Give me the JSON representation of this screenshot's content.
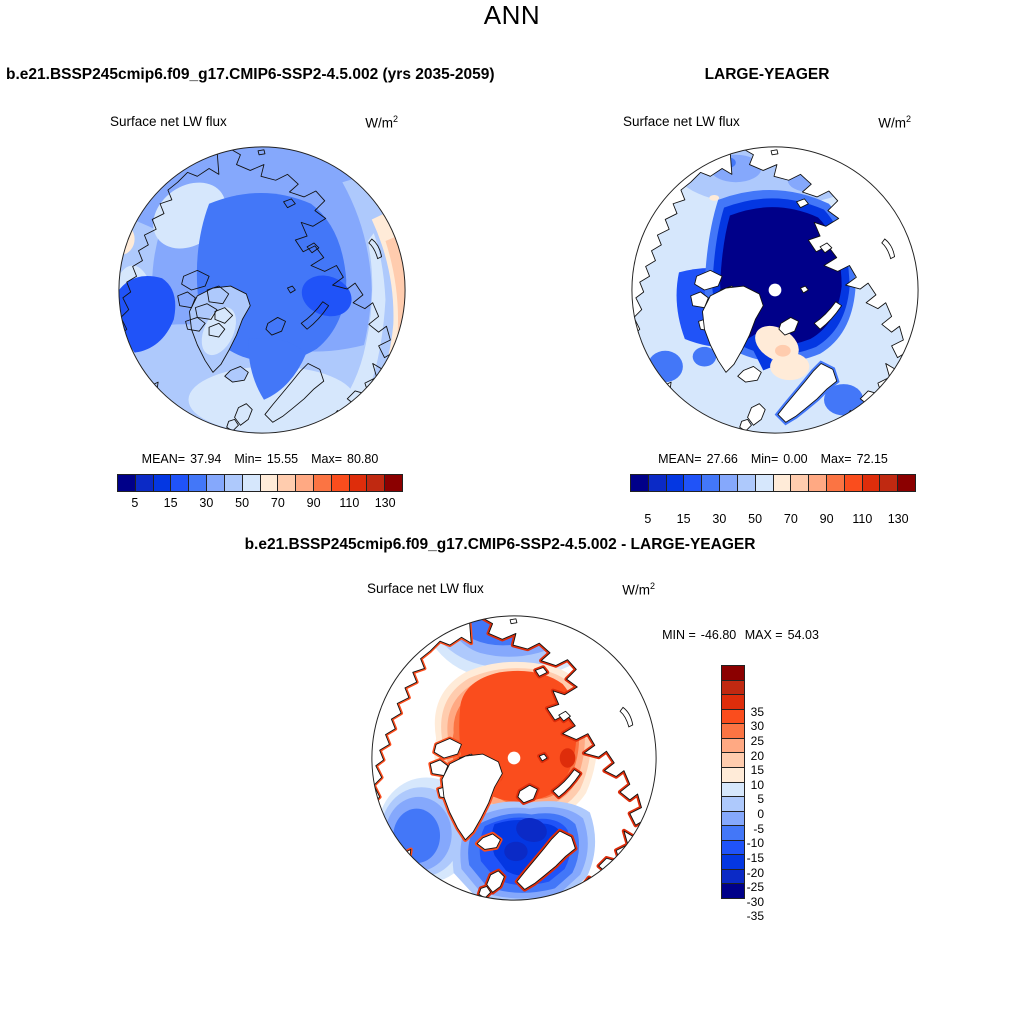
{
  "page_title": "ANN",
  "palette_blue_to_red": [
    "#000089",
    "#0B2AC6",
    "#0437E2",
    "#2053F8",
    "#4377F8",
    "#85A8FC",
    "#AEC9FC",
    "#D6E7FC",
    "#FFEBD8",
    "#FFCCAE",
    "#FFA983",
    "#FB7443",
    "#FA4D1D",
    "#DE2D0B",
    "#C02911",
    "#8B0000"
  ],
  "panels": {
    "model": {
      "title": "b.e21.BSSP245cmip6.f09_g17.CMIP6-SSP2-4.5.002 (yrs 2035-2059)",
      "field_label": "Surface net LW flux",
      "units_base": "W/m",
      "units_exp": "2",
      "stats": {
        "mean_label": "MEAN=",
        "mean": "37.94",
        "min_label": "Min=",
        "min": "15.55",
        "max_label": "Max=",
        "max": "80.80"
      },
      "ticks": [
        "5",
        "15",
        "30",
        "50",
        "70",
        "90",
        "110",
        "130"
      ]
    },
    "obs": {
      "title": "LARGE-YEAGER",
      "field_label": "Surface net LW flux",
      "units_base": "W/m",
      "units_exp": "2",
      "stats": {
        "mean_label": "MEAN=",
        "mean": "27.66",
        "min_label": "Min=",
        "min": "0.00",
        "max_label": "Max=",
        "max": "72.15"
      },
      "ticks": [
        "5",
        "15",
        "30",
        "50",
        "70",
        "90",
        "110",
        "130"
      ]
    },
    "diff": {
      "title": "b.e21.BSSP245cmip6.f09_g17.CMIP6-SSP2-4.5.002 - LARGE-YEAGER",
      "field_label": "Surface net LW flux",
      "units_base": "W/m",
      "units_exp": "2",
      "minmax": {
        "min_label": "MIN =",
        "min": "-46.80",
        "max_label": "MAX =",
        "max": "54.03"
      },
      "ticks": [
        "35",
        "30",
        "25",
        "20",
        "15",
        "10",
        "5",
        "0",
        "-5",
        "-10",
        "-15",
        "-20",
        "-25",
        "-30",
        "-35"
      ]
    }
  },
  "chart_data": [
    {
      "type": "heatmap",
      "panel": "top-left",
      "projection": "north polar stereographic",
      "title": "b.e21.BSSP245cmip6.f09_g17.CMIP6-SSP2-4.5.002 (yrs 2035-2059)",
      "field": "Surface net LW flux",
      "units": "W/m^2",
      "stats": {
        "mean": 37.94,
        "min": 15.55,
        "max": 80.8
      },
      "contour_levels": [
        5,
        10,
        15,
        20,
        30,
        40,
        50,
        60,
        70,
        80,
        90,
        100,
        110,
        120,
        130
      ],
      "labeled_levels": [
        5,
        15,
        30,
        50,
        70,
        90,
        110,
        130
      ],
      "colorbar_orientation": "horizontal-bottom",
      "land_masked": false,
      "pattern": "medium blue (~25-40) over the central Arctic Ocean and Canada, lighter blues (40-60) in a surrounding ring, pale-orange band (60-80) along the outer rim, strongest on the Atlantic/European side"
    },
    {
      "type": "heatmap",
      "panel": "top-right",
      "projection": "north polar stereographic",
      "title": "LARGE-YEAGER",
      "field": "Surface net LW flux",
      "units": "W/m^2",
      "stats": {
        "mean": 27.66,
        "min": 0.0,
        "max": 72.15
      },
      "contour_levels": [
        5,
        10,
        15,
        20,
        30,
        40,
        50,
        60,
        70,
        80,
        90,
        100,
        110,
        120,
        130
      ],
      "labeled_levels": [
        5,
        15,
        30,
        50,
        70,
        90,
        110,
        130
      ],
      "colorbar_orientation": "horizontal-bottom",
      "land_masked": true,
      "pattern": "dark navy minimum (<5) over the ice-covered central Arctic Ocean with a missing-data dot at the pole, light blues (20-40) in subpolar seas, small pale-peach patches (60-70) in the Nordic Seas; land masked white"
    },
    {
      "type": "heatmap",
      "panel": "bottom-center",
      "projection": "north polar stereographic",
      "title": "b.e21.BSSP245cmip6.f09_g17.CMIP6-SSP2-4.5.002 - LARGE-YEAGER",
      "field": "Surface net LW flux (difference)",
      "units": "W/m^2",
      "stats": {
        "min": -46.8,
        "max": 54.03
      },
      "contour_levels": [
        -35,
        -30,
        -25,
        -20,
        -15,
        -10,
        -5,
        0,
        5,
        10,
        15,
        20,
        25,
        30,
        35
      ],
      "colorbar_orientation": "vertical-right",
      "land_masked": true,
      "pattern": "+15 to +30 (orange/red) over the central Arctic Ocean and Canadian Archipelago; -15 to -35 (deep blues) over the Greenland/Norwegian/Barents Seas, Hudson Bay sector and Bering side; narrow red fringes along coastlines; missing-data dot at the pole"
    }
  ]
}
